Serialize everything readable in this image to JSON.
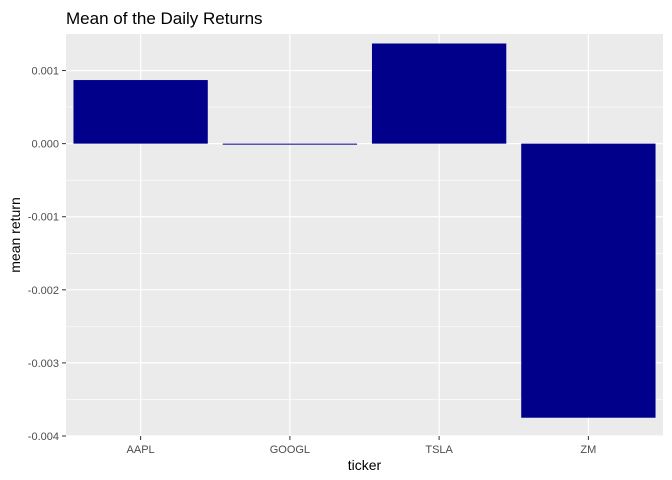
{
  "chart_data": {
    "type": "bar",
    "title": "Mean of the Daily Returns",
    "xlabel": "ticker",
    "ylabel": "mean return",
    "categories": [
      "AAPL",
      "GOOGL",
      "TSLA",
      "ZM"
    ],
    "values": [
      0.00087,
      -1e-05,
      0.00137,
      -0.00375
    ],
    "ylim": [
      -0.004,
      0.0015
    ],
    "yticks": [
      -0.004,
      -0.003,
      -0.002,
      -0.001,
      0.0,
      0.001
    ],
    "ytick_labels": [
      "-0.004",
      "-0.003",
      "-0.002",
      "-0.001",
      "0.000",
      "0.001"
    ],
    "grid": true,
    "legend": "none",
    "bar_color": "#00008B",
    "panel_background": "#EBEBEB",
    "grid_color": "#FFFFFF"
  }
}
